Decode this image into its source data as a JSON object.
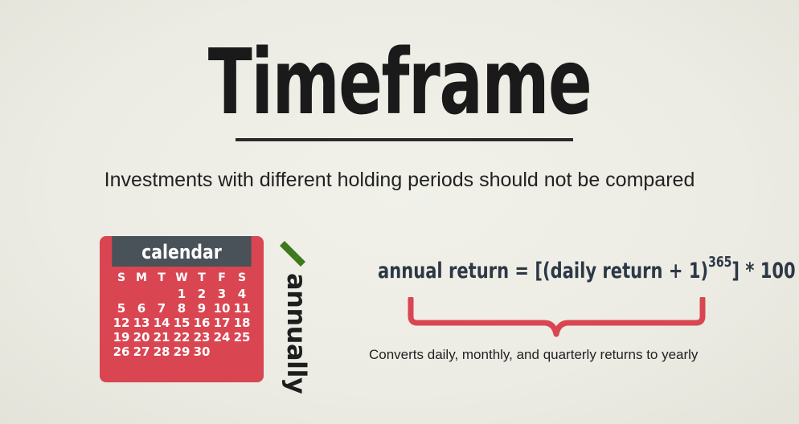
{
  "slide": {
    "title": "Timeframe",
    "subtitle": "Investments with different holding periods should not be compared"
  },
  "calendar": {
    "header": "calendar",
    "day_names": [
      "S",
      "M",
      "T",
      "W",
      "T",
      "F",
      "S"
    ],
    "weeks": [
      [
        "",
        "",
        "",
        "1",
        "2",
        "3",
        "4"
      ],
      [
        "5",
        "6",
        "7",
        "8",
        "9",
        "10",
        "11"
      ],
      [
        "12",
        "13",
        "14",
        "15",
        "16",
        "17",
        "18"
      ],
      [
        "19",
        "20",
        "21",
        "22",
        "23",
        "24",
        "25"
      ],
      [
        "26",
        "27",
        "28",
        "29",
        "30",
        "",
        ""
      ]
    ],
    "color": "#d94652",
    "header_color": "#495259"
  },
  "annually": {
    "label": "annually",
    "check_color": "#3d7a1e"
  },
  "formula": {
    "lhs": "annual return = [(daily return + 1)",
    "exponent": "365",
    "rhs": "] * 100",
    "brace_color": "#d94652",
    "caption": "Converts daily, monthly, and quarterly returns to yearly"
  }
}
